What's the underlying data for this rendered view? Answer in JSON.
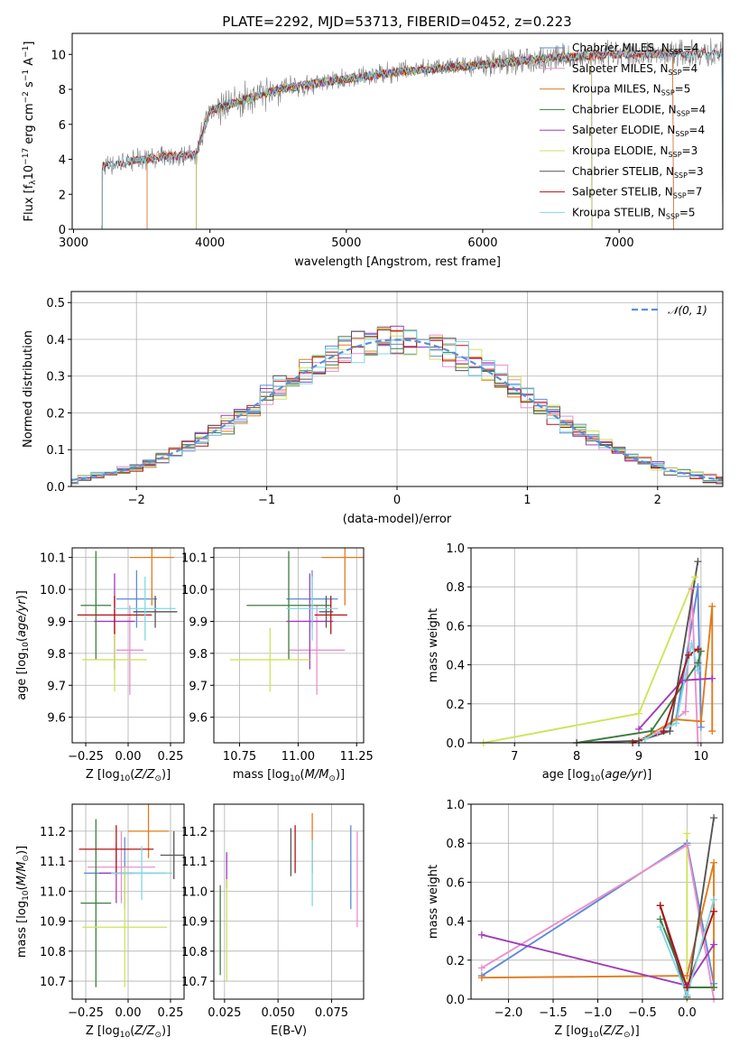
{
  "colors": {
    "Chabrier MILES": "#5e8bd6",
    "Salpeter MILES": "#ee8fcb",
    "Kroupa MILES": "#e07b1c",
    "Chabrier ELODIE": "#3d7d3f",
    "Salpeter ELODIE": "#a03cb8",
    "Kroupa ELODIE": "#cfe35a",
    "Chabrier STELIB": "#555555",
    "Salpeter STELIB": "#b01414",
    "Kroupa STELIB": "#7fd8e6",
    "normal": "#5b8fd9",
    "spectrum_data": "#7f7f7f"
  },
  "chart_data": [
    {
      "id": "spectrum",
      "type": "line",
      "title": "PLATE=2292, MJD=53713, FIBERID=0452, z=0.223",
      "xlabel": "wavelength [Angstrom, rest frame]",
      "ylabel": "Flux [fλ10⁻¹⁷ erg cm⁻² s⁻¹ A⁻¹]",
      "xlim": [
        2990,
        7760
      ],
      "ylim": [
        0,
        11.2
      ],
      "xticks": [
        "3000",
        "4000",
        "5000",
        "6000",
        "7000"
      ],
      "yticks": [
        "0",
        "2",
        "4",
        "6",
        "8",
        "10"
      ],
      "legend_position": "right",
      "legend": [
        {
          "name": "Chabrier MILES",
          "label": "Chabrier MILES, N",
          "sub": "SSP",
          "suffix": "=4"
        },
        {
          "name": "Salpeter MILES",
          "label": "Salpeter MILES, N",
          "sub": "SSP",
          "suffix": "=4"
        },
        {
          "name": "Kroupa MILES",
          "label": "Kroupa MILES, N",
          "sub": "SSP",
          "suffix": "=5"
        },
        {
          "name": "Chabrier ELODIE",
          "label": "Chabrier ELODIE, N",
          "sub": "SSP",
          "suffix": "=4"
        },
        {
          "name": "Salpeter ELODIE",
          "label": "Salpeter ELODIE, N",
          "sub": "SSP",
          "suffix": "=4"
        },
        {
          "name": "Kroupa ELODIE",
          "label": "Kroupa ELODIE, N",
          "sub": "SSP",
          "suffix": "=3"
        },
        {
          "name": "Chabrier STELIB",
          "label": "Chabrier STELIB, N",
          "sub": "SSP",
          "suffix": "=3"
        },
        {
          "name": "Salpeter STELIB",
          "label": "Salpeter STELIB, N",
          "sub": "SSP",
          "suffix": "=7"
        },
        {
          "name": "Kroupa STELIB",
          "label": "Kroupa STELIB, N",
          "sub": "SSP",
          "suffix": "=5"
        }
      ],
      "continuum_knots": [
        [
          3210,
          3.6
        ],
        [
          3500,
          4.0
        ],
        [
          3900,
          4.3
        ],
        [
          4000,
          6.8
        ],
        [
          4500,
          8.0
        ],
        [
          5000,
          8.6
        ],
        [
          5500,
          9.1
        ],
        [
          6000,
          9.4
        ],
        [
          6500,
          9.8
        ],
        [
          7000,
          10.0
        ],
        [
          7760,
          10.1
        ]
      ],
      "model_ranges": [
        {
          "name": "Chabrier MILES",
          "start": 3540,
          "end": 7400
        },
        {
          "name": "Salpeter MILES",
          "start": 3540,
          "end": 7400
        },
        {
          "name": "Kroupa MILES",
          "start": 3540,
          "end": 7400
        },
        {
          "name": "Chabrier ELODIE",
          "start": 3900,
          "end": 6800
        },
        {
          "name": "Salpeter ELODIE",
          "start": 3900,
          "end": 6800
        },
        {
          "name": "Kroupa ELODIE",
          "start": 3900,
          "end": 6800
        },
        {
          "name": "Chabrier STELIB",
          "start": 3210,
          "end": 7760
        },
        {
          "name": "Salpeter STELIB",
          "start": 3210,
          "end": 7760
        },
        {
          "name": "Kroupa STELIB",
          "start": 3210,
          "end": 7760
        }
      ]
    },
    {
      "id": "residuals",
      "type": "histogram",
      "xlabel": "(data-model)/error",
      "ylabel": "Normed distribution",
      "xlim": [
        -2.5,
        2.5
      ],
      "ylim": [
        0,
        0.53
      ],
      "xticks": [
        "−2",
        "−1",
        "0",
        "1",
        "2"
      ],
      "yticks": [
        "0.0",
        "0.1",
        "0.2",
        "0.3",
        "0.4",
        "0.5"
      ],
      "bin_width": 0.1,
      "legend": [
        {
          "name": "normal",
          "label": "𝒩(0, 1)"
        }
      ],
      "legend_position": "top-right",
      "grid": true
    },
    {
      "id": "age_vs_Z",
      "type": "scatter",
      "xlabel": "Z [log10(Z/Z⊙)]",
      "ylabel": "age  [log10(age/yr)]",
      "xlim": [
        -0.33,
        0.33
      ],
      "ylim": [
        9.52,
        10.13
      ],
      "xticks": [
        "−0.25",
        "0.00",
        "0.25"
      ],
      "yticks": [
        "9.6",
        "9.7",
        "9.8",
        "9.9",
        "10.0",
        "10.1"
      ],
      "grid": true,
      "points": [
        {
          "s": "Chabrier MILES",
          "x": 0.05,
          "xerr": 0.12,
          "y": 9.97,
          "yerr": 0.09
        },
        {
          "s": "Salpeter MILES",
          "x": 0.01,
          "xerr": 0.08,
          "y": 9.81,
          "yerr": 0.14
        },
        {
          "s": "Kroupa MILES",
          "x": 0.14,
          "xerr": 0.13,
          "y": 10.1,
          "yerr": 0.15
        },
        {
          "s": "Chabrier ELODIE",
          "x": -0.19,
          "xerr": 0.09,
          "y": 9.95,
          "yerr": 0.17
        },
        {
          "s": "Salpeter ELODIE",
          "x": -0.08,
          "xerr": 0.12,
          "y": 9.9,
          "yerr": 0.15
        },
        {
          "s": "Kroupa ELODIE",
          "x": -0.08,
          "xerr": 0.19,
          "y": 9.78,
          "yerr": 0.1
        },
        {
          "s": "Chabrier STELIB",
          "x": 0.16,
          "xerr": 0.13,
          "y": 9.93,
          "yerr": 0.05
        },
        {
          "s": "Salpeter STELIB",
          "x": -0.08,
          "xerr": 0.22,
          "y": 9.92,
          "yerr": 0.06
        },
        {
          "s": "Kroupa STELIB",
          "x": 0.1,
          "xerr": 0.18,
          "y": 9.94,
          "yerr": 0.1
        }
      ]
    },
    {
      "id": "age_vs_mass",
      "type": "scatter",
      "xlabel": "mass [log10(M/M⊙)]",
      "ylabel": "",
      "xlim": [
        10.64,
        11.28
      ],
      "ylim": [
        9.52,
        10.13
      ],
      "xticks": [
        "10.75",
        "11.00",
        "11.25"
      ],
      "yticks": [
        "9.6",
        "9.7",
        "9.8",
        "9.9",
        "10.0",
        "10.1"
      ],
      "grid": true,
      "points": [
        {
          "s": "Chabrier MILES",
          "x": 11.06,
          "xerr": 0.11,
          "y": 9.97,
          "yerr": 0.09
        },
        {
          "s": "Salpeter MILES",
          "x": 11.08,
          "xerr": 0.12,
          "y": 9.81,
          "yerr": 0.14
        },
        {
          "s": "Kroupa MILES",
          "x": 11.2,
          "xerr": 0.1,
          "y": 10.1,
          "yerr": 0.15
        },
        {
          "s": "Chabrier ELODIE",
          "x": 10.96,
          "xerr": 0.18,
          "y": 9.95,
          "yerr": 0.17
        },
        {
          "s": "Salpeter ELODIE",
          "x": 11.05,
          "xerr": 0.1,
          "y": 9.9,
          "yerr": 0.15
        },
        {
          "s": "Kroupa ELODIE",
          "x": 10.88,
          "xerr": 0.17,
          "y": 9.78,
          "yerr": 0.1
        },
        {
          "s": "Chabrier STELIB",
          "x": 11.12,
          "xerr": 0.03,
          "y": 9.93,
          "yerr": 0.05
        },
        {
          "s": "Salpeter STELIB",
          "x": 11.14,
          "xerr": 0.07,
          "y": 9.92,
          "yerr": 0.06
        },
        {
          "s": "Kroupa STELIB",
          "x": 11.06,
          "xerr": 0.11,
          "y": 9.94,
          "yerr": 0.1
        }
      ]
    },
    {
      "id": "weight_vs_age",
      "type": "line",
      "xlabel": "age  [log10(age/yr)]",
      "ylabel": "mass weight",
      "xlim": [
        6.3,
        10.35
      ],
      "ylim": [
        0,
        1.0
      ],
      "xticks": [
        "7",
        "8",
        "9",
        "10"
      ],
      "yticks": [
        "0.0",
        "0.2",
        "0.4",
        "0.6",
        "0.8",
        "1.0"
      ],
      "grid": true,
      "series": [
        {
          "name": "Chabrier MILES",
          "x": [
            9.6,
            9.95,
            10.0
          ],
          "y": [
            0.12,
            0.8,
            0.08
          ]
        },
        {
          "name": "Salpeter MILES",
          "x": [
            9.3,
            9.75,
            9.85,
            9.95
          ],
          "y": [
            0.05,
            0.16,
            0.79,
            0.0
          ]
        },
        {
          "name": "Kroupa MILES",
          "x": [
            9.0,
            9.6,
            10.0,
            10.18,
            10.18
          ],
          "y": [
            0.01,
            0.12,
            0.11,
            0.7,
            0.06
          ]
        },
        {
          "name": "Chabrier ELODIE",
          "x": [
            8.0,
            9.2,
            9.95,
            10.0
          ],
          "y": [
            0.0,
            0.06,
            0.41,
            0.47
          ]
        },
        {
          "name": "Salpeter ELODIE",
          "x": [
            9.0,
            9.7,
            10.18
          ],
          "y": [
            0.07,
            0.32,
            0.33
          ]
        },
        {
          "name": "Kroupa ELODIE",
          "x": [
            6.5,
            9.0,
            9.9
          ],
          "y": [
            0.0,
            0.15,
            0.85
          ]
        },
        {
          "name": "Chabrier STELIB",
          "x": [
            8.0,
            9.0,
            9.5,
            9.95
          ],
          "y": [
            0.0,
            0.01,
            0.06,
            0.93
          ]
        },
        {
          "name": "Salpeter STELIB",
          "x": [
            8.9,
            9.4,
            9.8,
            9.95
          ],
          "y": [
            0.0,
            0.06,
            0.45,
            0.48
          ]
        },
        {
          "name": "Kroupa STELIB",
          "x": [
            9.1,
            9.6,
            9.85,
            9.95
          ],
          "y": [
            0.02,
            0.1,
            0.51,
            0.37
          ]
        }
      ]
    },
    {
      "id": "mass_vs_Z",
      "type": "scatter",
      "xlabel": "Z [log10(Z/Z⊙)]",
      "ylabel": "mass [log10(M/M⊙)]",
      "xlim": [
        -0.33,
        0.33
      ],
      "ylim": [
        10.64,
        11.29
      ],
      "xticks": [
        "−0.25",
        "0.00",
        "0.25"
      ],
      "yticks": [
        "10.7",
        "10.8",
        "10.9",
        "11.0",
        "11.1",
        "11.2"
      ],
      "grid": true,
      "points": [
        {
          "s": "Chabrier MILES",
          "x": -0.02,
          "xerr": 0.24,
          "y": 11.06,
          "yerr": 0.12
        },
        {
          "s": "Salpeter MILES",
          "x": -0.04,
          "xerr": 0.2,
          "y": 11.08,
          "yerr": 0.12
        },
        {
          "s": "Kroupa MILES",
          "x": 0.12,
          "xerr": 0.12,
          "y": 11.2,
          "yerr": 0.09
        },
        {
          "s": "Chabrier ELODIE",
          "x": -0.19,
          "xerr": 0.09,
          "y": 10.96,
          "yerr": 0.28
        },
        {
          "s": "Salpeter ELODIE",
          "x": -0.07,
          "xerr": 0.1,
          "y": 11.06,
          "yerr": 0.1
        },
        {
          "s": "Kroupa ELODIE",
          "x": -0.02,
          "xerr": 0.25,
          "y": 10.88,
          "yerr": 0.2
        },
        {
          "s": "Chabrier STELIB",
          "x": 0.27,
          "xerr": 0.08,
          "y": 11.12,
          "yerr": 0.08
        },
        {
          "s": "Salpeter STELIB",
          "x": -0.07,
          "xerr": 0.22,
          "y": 11.14,
          "yerr": 0.08
        },
        {
          "s": "Kroupa STELIB",
          "x": 0.08,
          "xerr": 0.18,
          "y": 11.06,
          "yerr": 0.09
        }
      ]
    },
    {
      "id": "mass_vs_ebv",
      "type": "scatter",
      "xlabel": "E(B-V)",
      "ylabel": "",
      "xlim": [
        0.02,
        0.09
      ],
      "ylim": [
        10.64,
        11.29
      ],
      "xticks": [
        "0.025",
        "0.050",
        "0.075"
      ],
      "yticks": [
        "10.7",
        "10.8",
        "10.9",
        "11.0",
        "11.1",
        "11.2"
      ],
      "grid": true,
      "points": [
        {
          "s": "Chabrier MILES",
          "x": 0.084,
          "y": 11.08,
          "yerr": 0.14
        },
        {
          "s": "Salpeter MILES",
          "x": 0.087,
          "y": 11.04,
          "yerr": 0.16
        },
        {
          "s": "Kroupa MILES",
          "x": 0.066,
          "y": 11.16,
          "yerr": 0.1
        },
        {
          "s": "Chabrier ELODIE",
          "x": 0.023,
          "y": 10.87,
          "yerr": 0.15
        },
        {
          "s": "Salpeter ELODIE",
          "x": 0.026,
          "y": 11.07,
          "yerr": 0.06
        },
        {
          "s": "Kroupa ELODIE",
          "x": 0.026,
          "y": 10.87,
          "yerr": 0.17
        },
        {
          "s": "Chabrier STELIB",
          "x": 0.056,
          "y": 11.13,
          "yerr": 0.08
        },
        {
          "s": "Salpeter STELIB",
          "x": 0.058,
          "y": 11.14,
          "yerr": 0.08
        },
        {
          "s": "Kroupa STELIB",
          "x": 0.066,
          "y": 11.06,
          "yerr": 0.11
        }
      ]
    },
    {
      "id": "weight_vs_Z",
      "type": "line",
      "xlabel": "Z [log10(Z/Z⊙)]",
      "ylabel": "mass weight",
      "xlim": [
        -2.42,
        0.4
      ],
      "ylim": [
        0,
        1.0
      ],
      "xticks": [
        "−2.0",
        "−1.5",
        "−1.0",
        "−0.5",
        "0.0"
      ],
      "yticks": [
        "0.0",
        "0.2",
        "0.4",
        "0.6",
        "0.8",
        "1.0"
      ],
      "grid": true,
      "series": [
        {
          "name": "Chabrier MILES",
          "x": [
            -2.3,
            0.0,
            0.3
          ],
          "y": [
            0.12,
            0.8,
            0.08
          ]
        },
        {
          "name": "Salpeter MILES",
          "x": [
            -2.3,
            0.0,
            0.3
          ],
          "y": [
            0.16,
            0.79,
            0.0
          ]
        },
        {
          "name": "Kroupa MILES",
          "x": [
            -2.3,
            0.0,
            0.3,
            0.3
          ],
          "y": [
            0.11,
            0.12,
            0.7,
            0.06
          ]
        },
        {
          "name": "Chabrier ELODIE",
          "x": [
            -0.3,
            0.0,
            0.3
          ],
          "y": [
            0.41,
            0.06,
            0.06
          ]
        },
        {
          "name": "Salpeter ELODIE",
          "x": [
            -2.3,
            0.0,
            0.3
          ],
          "y": [
            0.33,
            0.07,
            0.28
          ]
        },
        {
          "name": "Kroupa ELODIE",
          "x": [
            0.0,
            0.0
          ],
          "y": [
            0.0,
            0.85
          ]
        },
        {
          "name": "Chabrier STELIB",
          "x": [
            -0.3,
            0.0,
            0.3
          ],
          "y": [
            0.48,
            0.01,
            0.93
          ]
        },
        {
          "name": "Salpeter STELIB",
          "x": [
            -0.3,
            0.0,
            0.3
          ],
          "y": [
            0.48,
            0.06,
            0.45
          ]
        },
        {
          "name": "Kroupa STELIB",
          "x": [
            -0.3,
            0.0,
            0.3
          ],
          "y": [
            0.37,
            0.02,
            0.51
          ]
        }
      ]
    }
  ]
}
